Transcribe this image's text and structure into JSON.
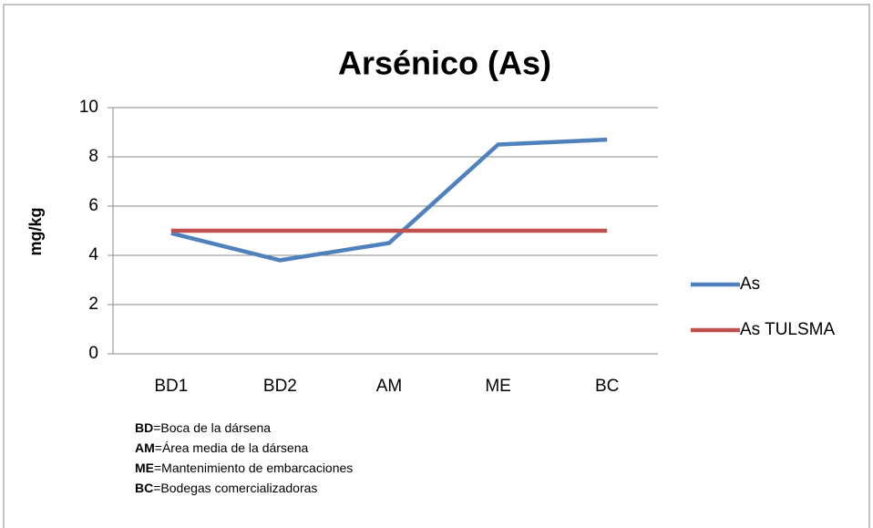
{
  "chart_data": {
    "type": "line",
    "title": "Arsénico (As)",
    "y_label": "mg/kg",
    "categories": [
      "BD1",
      "BD2",
      "AM",
      "ME",
      "BC"
    ],
    "series": [
      {
        "name": "As",
        "color": "#4f81bd",
        "values": [
          4.9,
          3.8,
          4.5,
          8.5,
          8.7
        ]
      },
      {
        "name": "As TULSMA",
        "color": "#c0504d",
        "values": [
          5,
          5,
          5,
          5,
          5
        ]
      }
    ],
    "ylim": [
      0,
      10
    ],
    "yticks": [
      0,
      2,
      4,
      6,
      8,
      10
    ],
    "grid": true,
    "legend": "right",
    "notes": [
      {
        "abbr": "BD",
        "text": "=Boca de la dársena"
      },
      {
        "abbr": "AM",
        "text": "=Área media de la dársena"
      },
      {
        "abbr": "ME",
        "text": "=Mantenimiento de embarcaciones"
      },
      {
        "abbr": "BC",
        "text": "=Bodegas comercializadoras"
      }
    ]
  }
}
